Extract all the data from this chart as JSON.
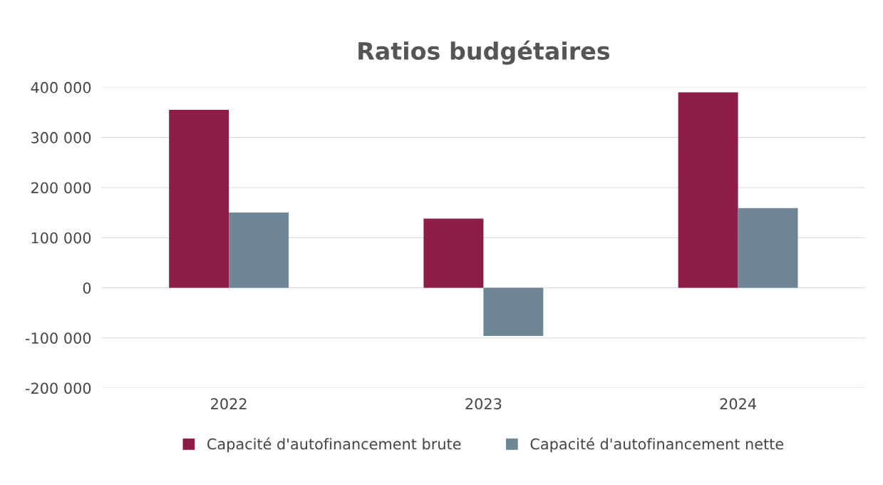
{
  "chart_data": {
    "type": "bar",
    "title": "Ratios budgétaires",
    "categories": [
      "2022",
      "2023",
      "2024"
    ],
    "series": [
      {
        "name": "Capacité d'autofinancement brute",
        "color": "#8c1c48",
        "values": [
          355000,
          138000,
          390000
        ]
      },
      {
        "name": "Capacité d'autofinancement nette",
        "color": "#6e8696",
        "values": [
          150000,
          -96000,
          159000
        ]
      }
    ],
    "ylim": [
      -200000,
      400000
    ],
    "yticks": [
      {
        "value": -200000,
        "label": "-200 000"
      },
      {
        "value": -100000,
        "label": "-100 000"
      },
      {
        "value": 0,
        "label": "0"
      },
      {
        "value": 100000,
        "label": "100 000"
      },
      {
        "value": 200000,
        "label": "200 000"
      },
      {
        "value": 300000,
        "label": "300 000"
      },
      {
        "value": 400000,
        "label": "400 000"
      }
    ],
    "grid": "y",
    "legend": "bottom"
  }
}
